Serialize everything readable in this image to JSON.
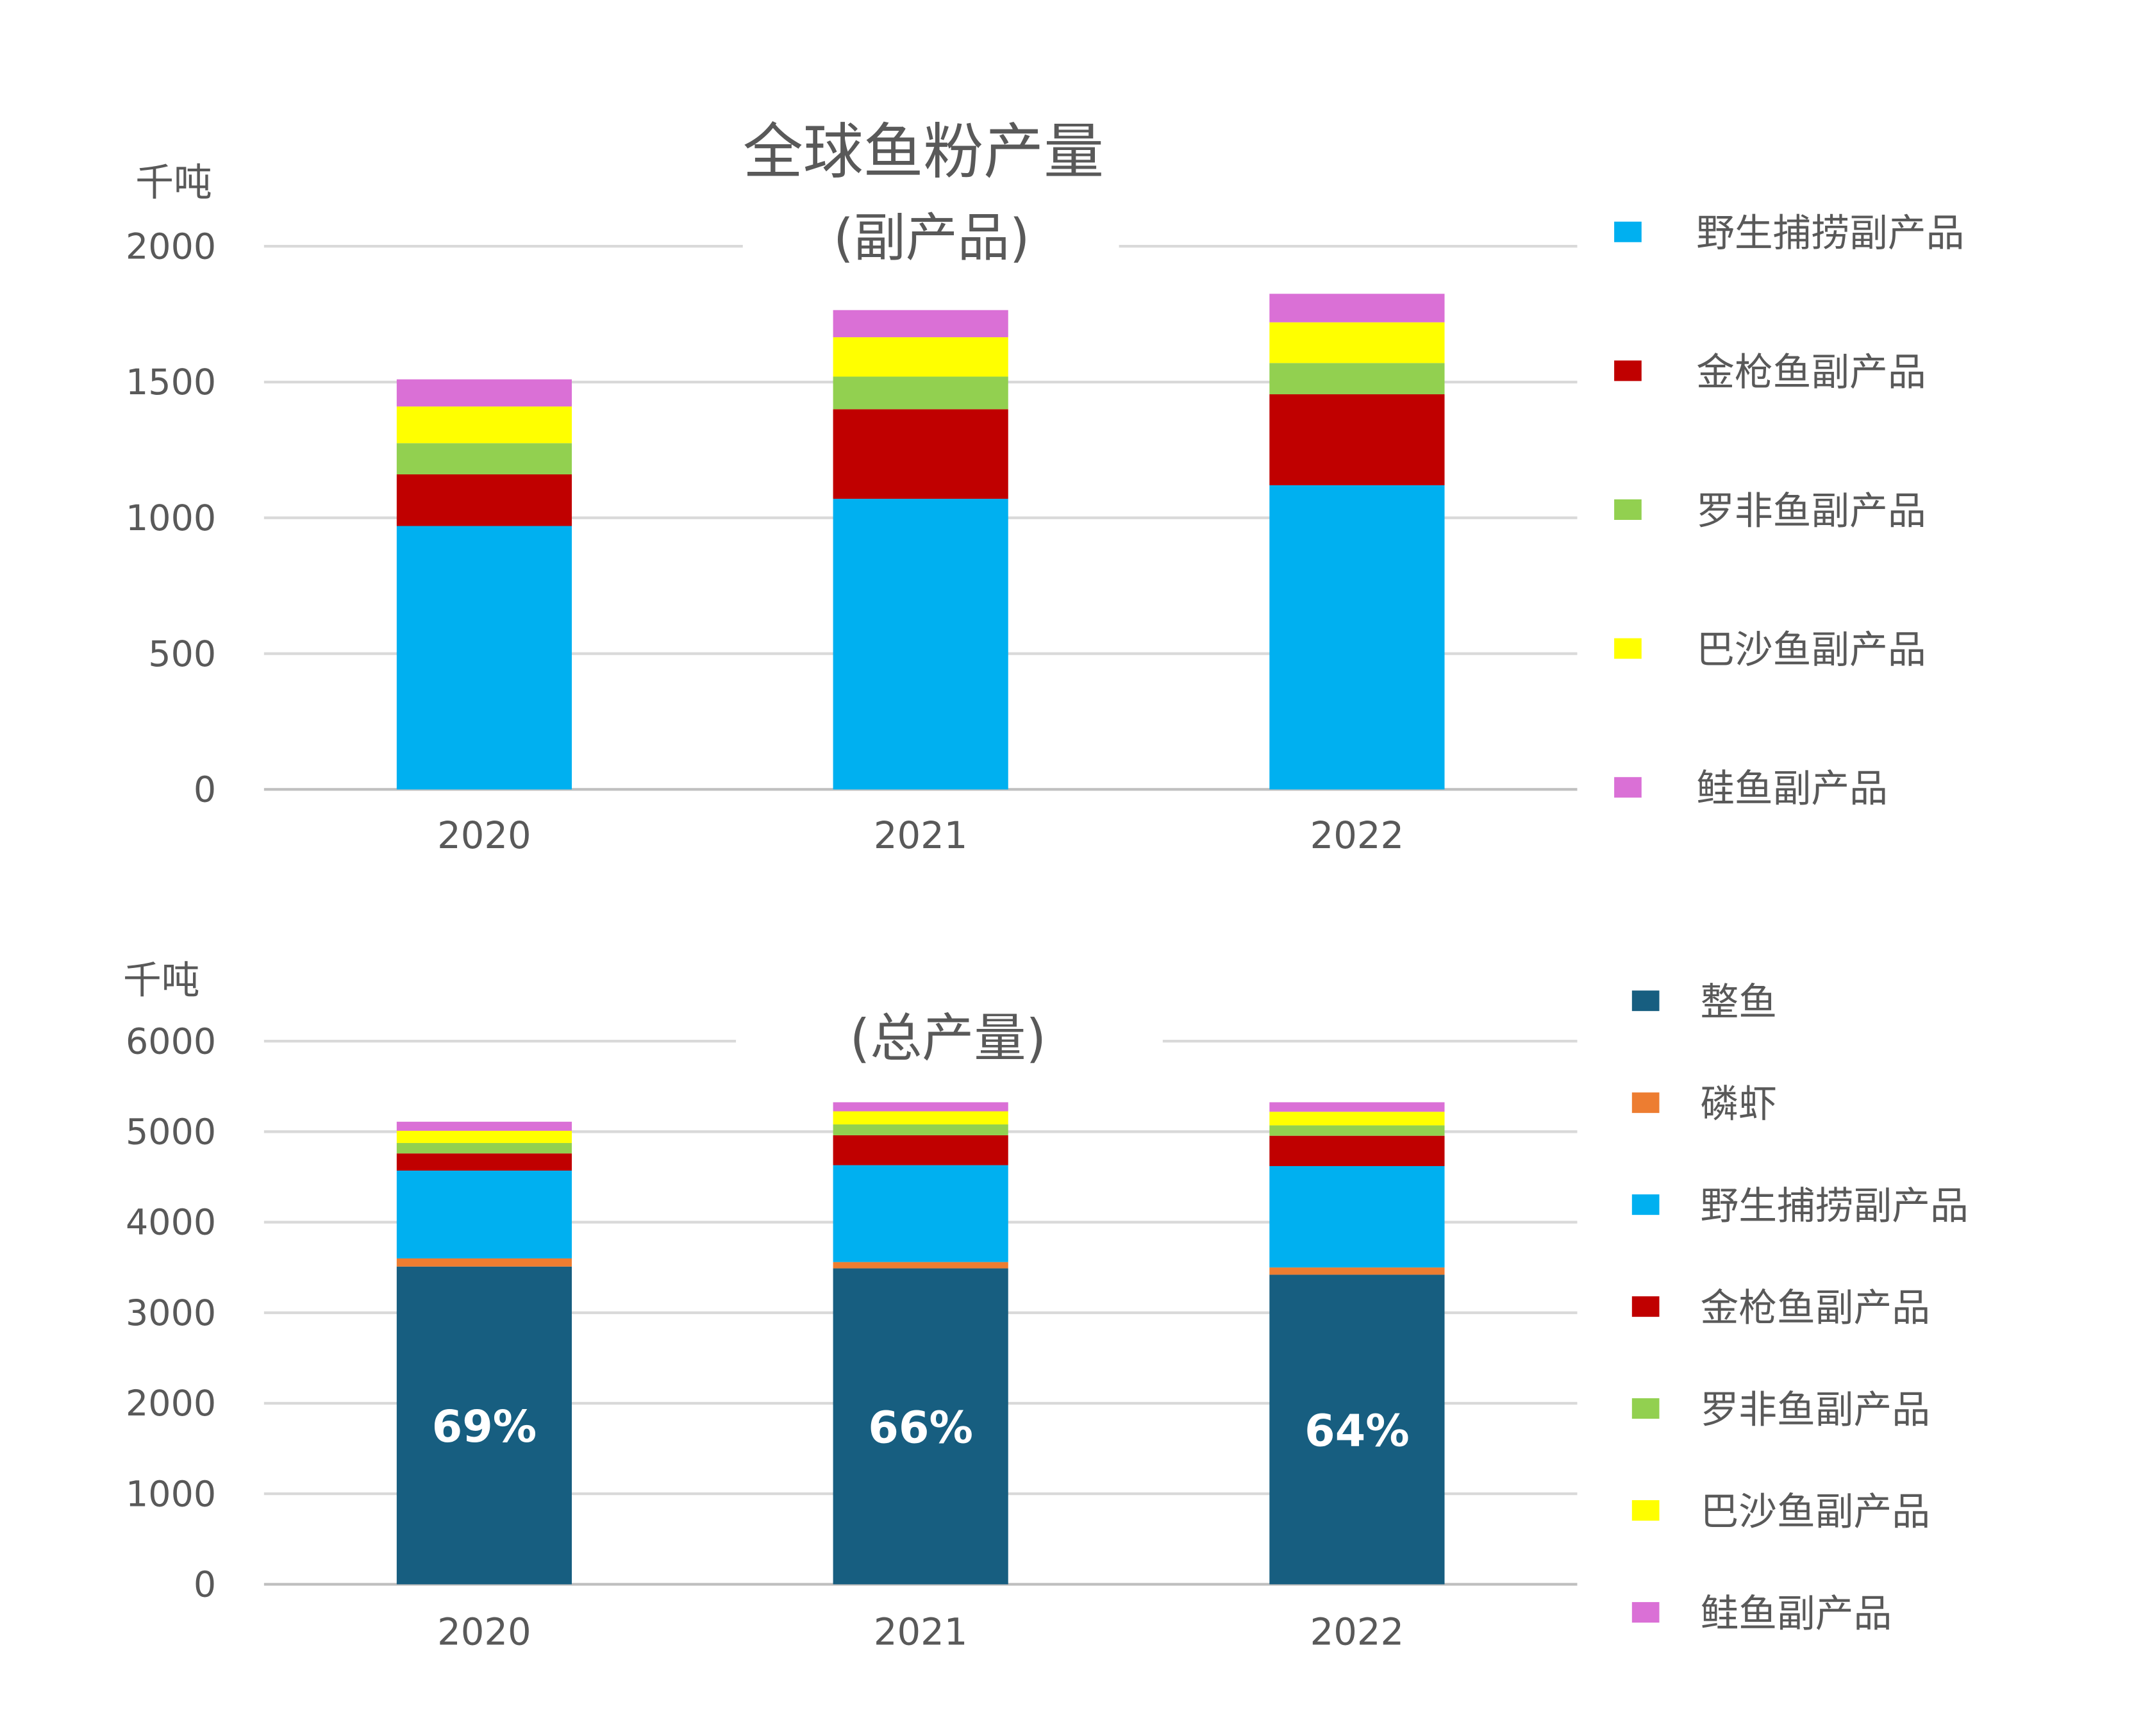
{
  "title": "全球鱼粉产量",
  "colors": {
    "whole_fish": "#175E80",
    "krill": "#ED7D31",
    "wild": "#00B0F0",
    "tuna": "#C00000",
    "tilapia": "#92D050",
    "pangasius": "#FFFF00",
    "salmon": "#DA70D6",
    "grid": "#d9d9d9",
    "axis_text": "#595959"
  },
  "chart_data": [
    {
      "type": "bar",
      "stacked": true,
      "subtitle": "(副产品)",
      "unit_label": "千吨",
      "categories": [
        "2020",
        "2021",
        "2022"
      ],
      "ylim": [
        0,
        2000
      ],
      "yticks": [
        "0",
        "500",
        "1000",
        "1500",
        "2000"
      ],
      "series": [
        {
          "name": "野生捕捞副产品",
          "color": "#00B0F0",
          "values": [
            970,
            1070,
            1120
          ]
        },
        {
          "name": "金枪鱼副产品",
          "color": "#C00000",
          "values": [
            190,
            330,
            335
          ]
        },
        {
          "name": "罗非鱼副产品",
          "color": "#92D050",
          "values": [
            115,
            120,
            115
          ]
        },
        {
          "name": "巴沙鱼副产品",
          "color": "#FFFF00",
          "values": [
            135,
            145,
            150
          ]
        },
        {
          "name": "鲑鱼副产品",
          "color": "#DA70D6",
          "values": [
            100,
            100,
            105
          ]
        }
      ],
      "legend_position": "right"
    },
    {
      "type": "bar",
      "stacked": true,
      "subtitle": "(总产量)",
      "unit_label": "千吨",
      "categories": [
        "2020",
        "2021",
        "2022"
      ],
      "ylim": [
        0,
        6000
      ],
      "yticks": [
        "0",
        "1000",
        "2000",
        "3000",
        "4000",
        "5000",
        "6000"
      ],
      "series": [
        {
          "name": "整鱼",
          "color": "#175E80",
          "values": [
            3510,
            3490,
            3420
          ]
        },
        {
          "name": "磷虾",
          "color": "#ED7D31",
          "values": [
            90,
            70,
            80
          ]
        },
        {
          "name": "野生捕捞副产品",
          "color": "#00B0F0",
          "values": [
            970,
            1070,
            1120
          ]
        },
        {
          "name": "金枪鱼副产品",
          "color": "#C00000",
          "values": [
            190,
            330,
            335
          ]
        },
        {
          "name": "罗非鱼副产品",
          "color": "#92D050",
          "values": [
            115,
            120,
            115
          ]
        },
        {
          "name": "巴沙鱼副产品",
          "color": "#FFFF00",
          "values": [
            135,
            145,
            150
          ]
        },
        {
          "name": "鲑鱼副产品",
          "color": "#DA70D6",
          "values": [
            100,
            100,
            105
          ]
        }
      ],
      "bar_labels": [
        "69%",
        "66%",
        "64%"
      ],
      "legend_position": "right"
    }
  ]
}
